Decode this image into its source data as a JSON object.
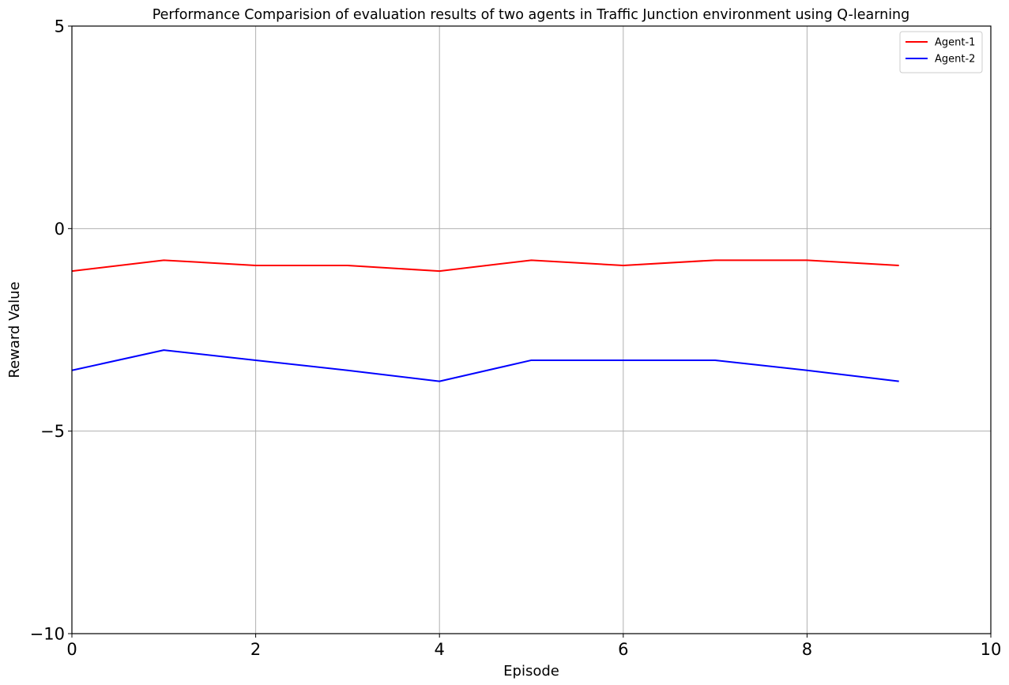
{
  "chart_data": {
    "type": "line",
    "title": "Performance Comparision of evaluation results of two agents in Traffic Junction environment using Q-learning",
    "xlabel": "Episode",
    "ylabel": "Reward Value",
    "xlim": [
      0,
      10
    ],
    "ylim": [
      -10,
      5
    ],
    "xticks": [
      0,
      2,
      4,
      6,
      8,
      10
    ],
    "xtick_labels": [
      "0",
      "2",
      "4",
      "6",
      "8",
      "10"
    ],
    "yticks": [
      -10,
      -5,
      0,
      5
    ],
    "ytick_labels": [
      "−10",
      "−5",
      "0",
      "5"
    ],
    "grid": true,
    "legend_position": "top-right",
    "x": [
      0,
      1,
      2,
      3,
      4,
      5,
      6,
      7,
      8,
      9
    ],
    "series": [
      {
        "name": "Agent-1",
        "color": "#ff0000",
        "values": [
          -1.05,
          -0.78,
          -0.91,
          -0.91,
          -1.05,
          -0.78,
          -0.91,
          -0.78,
          -0.78,
          -0.91
        ]
      },
      {
        "name": "Agent-2",
        "color": "#0000ff",
        "values": [
          -3.5,
          -3.0,
          -3.25,
          -3.5,
          -3.77,
          -3.25,
          -3.25,
          -3.25,
          -3.5,
          -3.77
        ]
      }
    ]
  }
}
